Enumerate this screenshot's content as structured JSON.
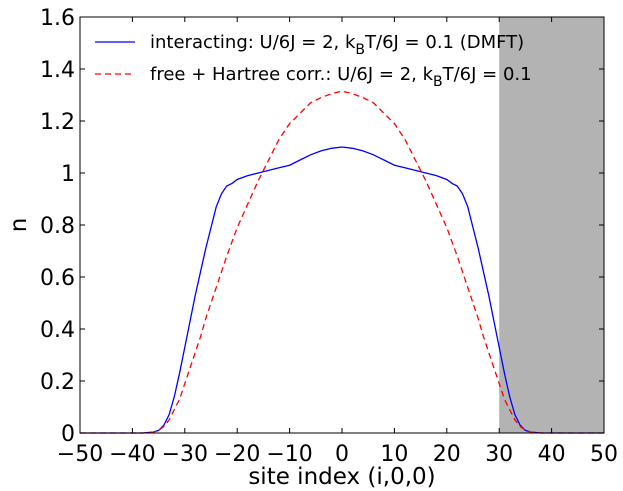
{
  "chart_data": {
    "type": "line",
    "title": "",
    "xlabel": "site index (i,0,0)",
    "ylabel": "n",
    "xlim": [
      -50,
      50
    ],
    "ylim": [
      0,
      1.6
    ],
    "xticks": [
      -50,
      -40,
      -30,
      -20,
      -10,
      0,
      10,
      20,
      30,
      40,
      50
    ],
    "yticks": [
      0,
      0.2,
      0.4,
      0.6,
      0.8,
      1,
      1.2,
      1.4,
      1.6
    ],
    "xtick_labels": [
      "−50",
      "−40",
      "−30",
      "−20",
      "−10",
      "0",
      "10",
      "20",
      "30",
      "40",
      "50"
    ],
    "ytick_labels": [
      "0",
      "0.2",
      "0.4",
      "0.6",
      "0.8",
      "1",
      "1.2",
      "1.4",
      "1.6"
    ],
    "grid": false,
    "legend_position": "top",
    "shaded_region": {
      "x_from": 30,
      "x_to": 50,
      "color": "#b3b3b3"
    },
    "series": [
      {
        "name_main": "interacting: U/6J = 2, k",
        "name_sub": "B",
        "name_tail": "T/6J = 0.1 (DMFT)",
        "color": "#0000ff",
        "style": "solid",
        "x": [
          -50,
          -38,
          -36,
          -35,
          -34,
          -33,
          -32,
          -31,
          -30,
          -29,
          -28,
          -27,
          -26,
          -25,
          -24,
          -23,
          -22,
          -21,
          -20,
          -18,
          -16,
          -14,
          -12,
          -10,
          -8,
          -6,
          -4,
          -2,
          0,
          2,
          4,
          6,
          8,
          10,
          12,
          14,
          16,
          18,
          20,
          21,
          22,
          23,
          24,
          25,
          26,
          27,
          28,
          29,
          30,
          31,
          32,
          33,
          34,
          35,
          36,
          38,
          50
        ],
        "y": [
          0,
          0,
          0.004,
          0.01,
          0.03,
          0.07,
          0.14,
          0.23,
          0.33,
          0.43,
          0.53,
          0.62,
          0.71,
          0.79,
          0.87,
          0.92,
          0.95,
          0.96,
          0.975,
          0.99,
          1.0,
          1.01,
          1.02,
          1.03,
          1.05,
          1.07,
          1.085,
          1.095,
          1.1,
          1.095,
          1.085,
          1.07,
          1.05,
          1.03,
          1.02,
          1.01,
          1.0,
          0.99,
          0.975,
          0.96,
          0.95,
          0.92,
          0.87,
          0.79,
          0.71,
          0.62,
          0.53,
          0.43,
          0.33,
          0.23,
          0.14,
          0.07,
          0.03,
          0.01,
          0.004,
          0,
          0
        ]
      },
      {
        "name_main": "free + Hartree corr.: U/6J = 2, k",
        "name_sub": "B",
        "name_tail": "T/6J = 0.1",
        "color": "#ff0000",
        "style": "dashed",
        "x": [
          -50,
          -38,
          -36,
          -35,
          -34,
          -33,
          -32,
          -31,
          -30,
          -29,
          -28,
          -27,
          -26,
          -25,
          -24,
          -22,
          -20,
          -18,
          -16,
          -14,
          -12,
          -10,
          -8,
          -6,
          -4,
          -2,
          0,
          2,
          4,
          6,
          8,
          10,
          12,
          14,
          16,
          18,
          20,
          22,
          24,
          25,
          26,
          27,
          28,
          29,
          30,
          31,
          32,
          33,
          34,
          35,
          36,
          38,
          50
        ],
        "y": [
          0,
          0,
          0.004,
          0.01,
          0.025,
          0.05,
          0.09,
          0.13,
          0.19,
          0.25,
          0.31,
          0.37,
          0.44,
          0.5,
          0.56,
          0.68,
          0.79,
          0.88,
          0.97,
          1.05,
          1.13,
          1.19,
          1.23,
          1.27,
          1.29,
          1.305,
          1.315,
          1.305,
          1.29,
          1.27,
          1.23,
          1.19,
          1.13,
          1.05,
          0.97,
          0.88,
          0.79,
          0.68,
          0.56,
          0.5,
          0.44,
          0.37,
          0.31,
          0.25,
          0.19,
          0.13,
          0.09,
          0.05,
          0.025,
          0.01,
          0.004,
          0,
          0
        ]
      }
    ]
  }
}
